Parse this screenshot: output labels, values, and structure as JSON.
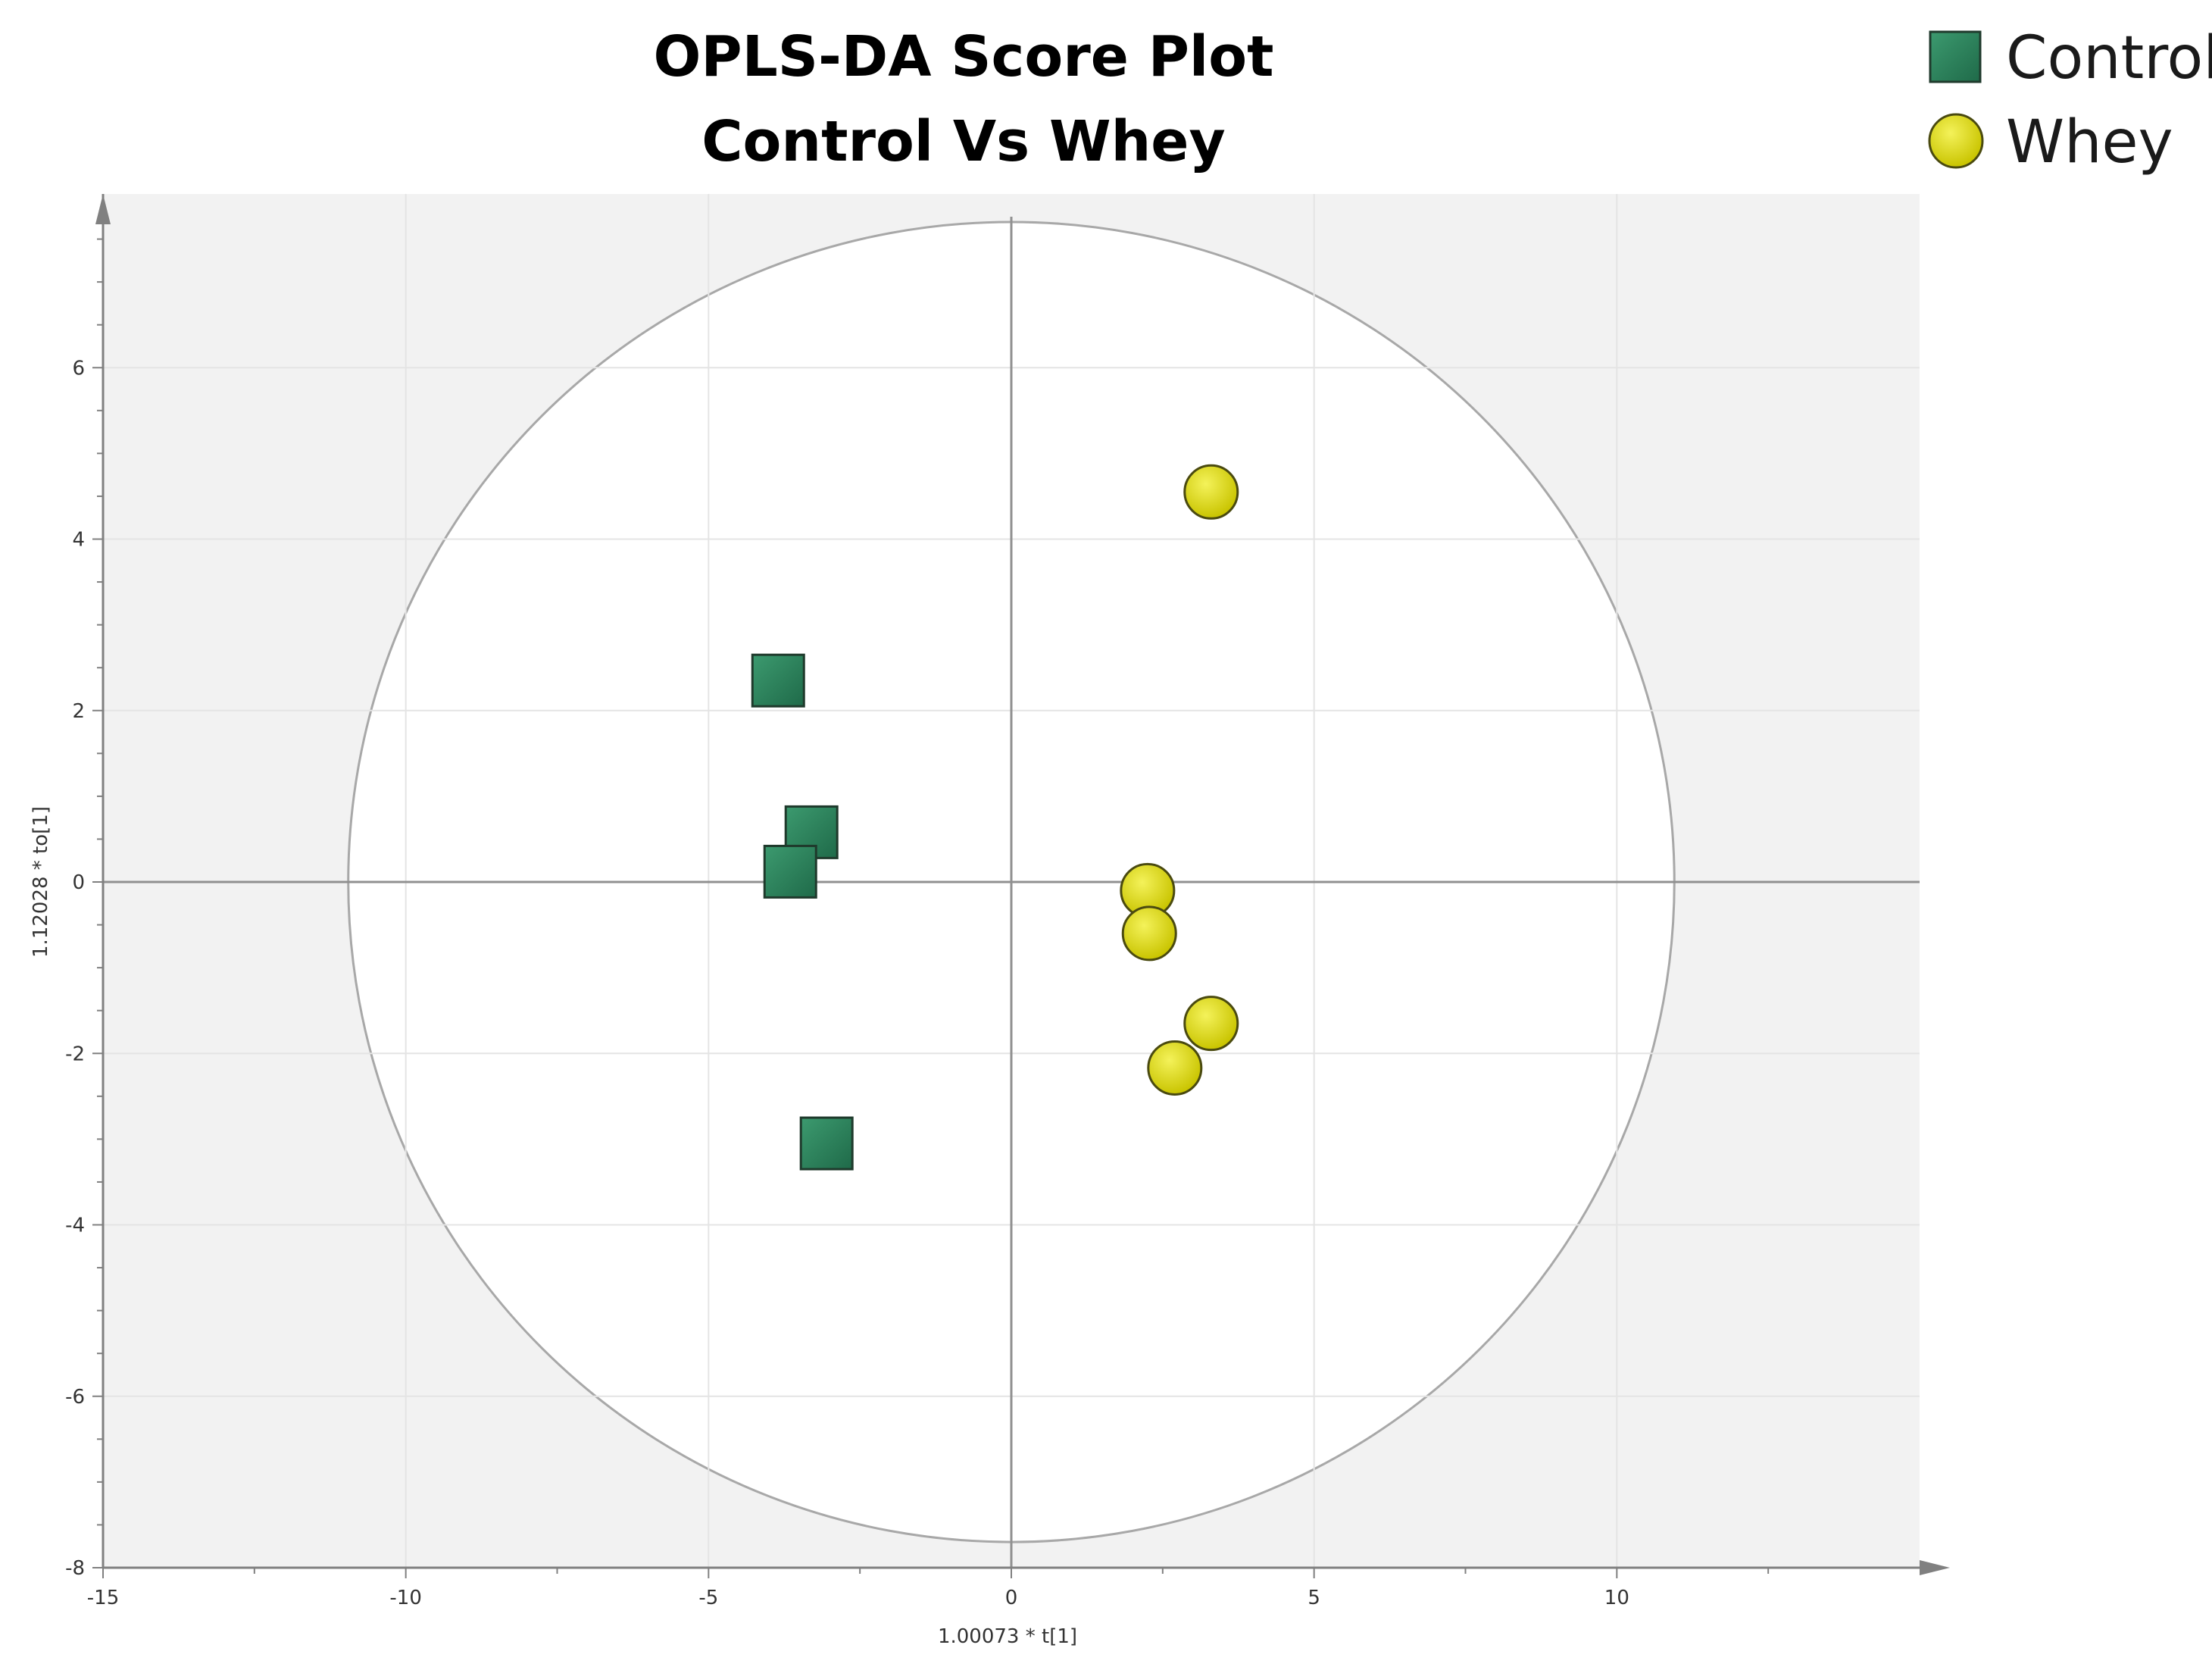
{
  "chart_data": {
    "type": "scatter",
    "title": "OPLS-DA Score Plot",
    "subtitle": "Control Vs Whey",
    "xlabel": "1.00073 * t[1]",
    "ylabel": "1.12028 * to[1]",
    "xlim": [
      -15,
      15
    ],
    "ylim": [
      -8,
      8
    ],
    "xticks": [
      -15,
      -10,
      -5,
      0,
      5,
      10
    ],
    "yticks": [
      -8,
      -6,
      -4,
      -2,
      0,
      2,
      4,
      6
    ],
    "grid": true,
    "hotelling_ellipse": {
      "rx": 10.95,
      "ry": 7.7
    },
    "legend_position": "top-right",
    "series": [
      {
        "name": "Control",
        "marker": "square",
        "color": "#2e7d5b",
        "points": [
          {
            "x": -3.85,
            "y": 2.35
          },
          {
            "x": -3.3,
            "y": 0.58
          },
          {
            "x": -3.65,
            "y": 0.12
          },
          {
            "x": -3.05,
            "y": -3.05
          }
        ]
      },
      {
        "name": "Whey",
        "marker": "circle",
        "color": "#d9d500",
        "points": [
          {
            "x": 3.3,
            "y": 4.55
          },
          {
            "x": 2.25,
            "y": -0.1
          },
          {
            "x": 2.28,
            "y": -0.6
          },
          {
            "x": 3.3,
            "y": -1.65
          },
          {
            "x": 2.7,
            "y": -2.17
          }
        ]
      }
    ]
  }
}
